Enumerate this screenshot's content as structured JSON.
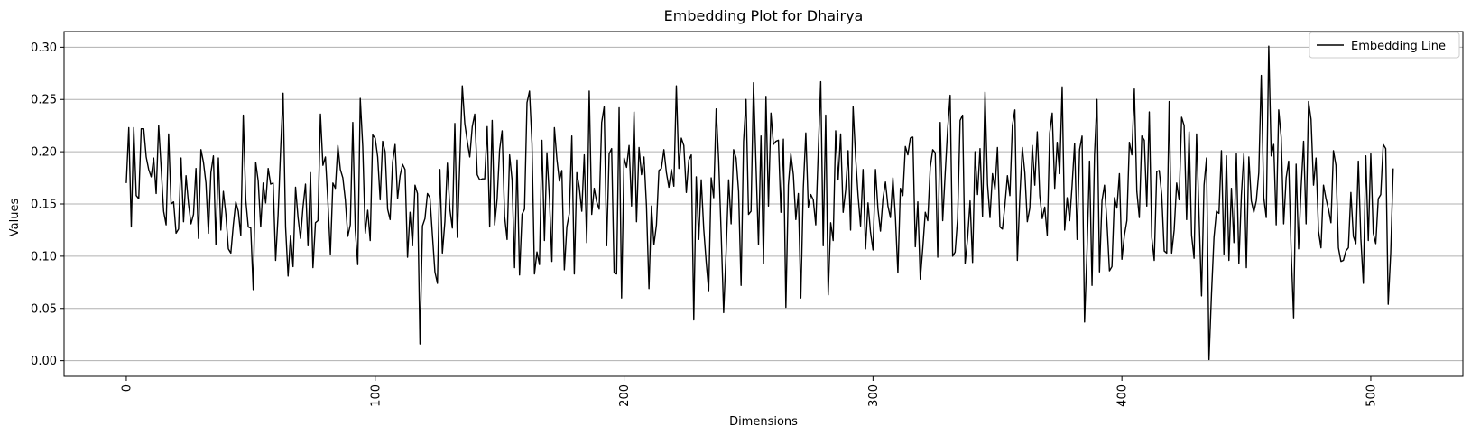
{
  "chart_data": {
    "type": "line",
    "title": "Embedding Plot for Dhairya",
    "xlabel": "Dimensions",
    "ylabel": "Values",
    "xlim": [
      -25,
      537
    ],
    "ylim": [
      -0.015,
      0.315
    ],
    "xticks": [
      0,
      100,
      200,
      300,
      400,
      500
    ],
    "xtick_labels": [
      "0",
      "100",
      "200",
      "300",
      "400",
      "500"
    ],
    "yticks": [
      0.0,
      0.05,
      0.1,
      0.15,
      0.2,
      0.25,
      0.3
    ],
    "ytick_labels": [
      "0.00",
      "0.05",
      "0.10",
      "0.15",
      "0.20",
      "0.25",
      "0.30"
    ],
    "grid": "horizontal",
    "legend_position": "top-right",
    "line_color": "#000000",
    "grid_color": "#b0b0b0",
    "series": [
      {
        "name": "Embedding Line",
        "x_start": 0,
        "x_step": 1,
        "values": [
          0.17,
          0.223,
          0.128,
          0.223,
          0.158,
          0.155,
          0.222,
          0.222,
          0.195,
          0.183,
          0.176,
          0.194,
          0.16,
          0.225,
          0.185,
          0.143,
          0.13,
          0.217,
          0.15,
          0.152,
          0.122,
          0.126,
          0.194,
          0.133,
          0.177,
          0.15,
          0.131,
          0.14,
          0.184,
          0.117,
          0.202,
          0.19,
          0.17,
          0.122,
          0.18,
          0.196,
          0.111,
          0.194,
          0.125,
          0.162,
          0.14,
          0.107,
          0.103,
          0.13,
          0.152,
          0.143,
          0.12,
          0.235,
          0.154,
          0.128,
          0.127,
          0.068,
          0.19,
          0.172,
          0.128,
          0.17,
          0.151,
          0.184,
          0.169,
          0.17,
          0.096,
          0.14,
          0.202,
          0.256,
          0.128,
          0.081,
          0.12,
          0.09,
          0.166,
          0.137,
          0.117,
          0.147,
          0.169,
          0.11,
          0.18,
          0.089,
          0.132,
          0.134,
          0.236,
          0.187,
          0.195,
          0.152,
          0.102,
          0.17,
          0.165,
          0.206,
          0.183,
          0.175,
          0.154,
          0.119,
          0.13,
          0.228,
          0.125,
          0.092,
          0.251,
          0.205,
          0.122,
          0.144,
          0.115,
          0.216,
          0.213,
          0.195,
          0.154,
          0.21,
          0.2,
          0.145,
          0.135,
          0.19,
          0.207,
          0.155,
          0.177,
          0.188,
          0.183,
          0.099,
          0.142,
          0.11,
          0.168,
          0.16,
          0.016,
          0.129,
          0.136,
          0.16,
          0.156,
          0.12,
          0.085,
          0.074,
          0.183,
          0.103,
          0.133,
          0.189,
          0.145,
          0.127,
          0.227,
          0.118,
          0.19,
          0.263,
          0.227,
          0.21,
          0.195,
          0.224,
          0.236,
          0.178,
          0.173,
          0.174,
          0.174,
          0.224,
          0.128,
          0.23,
          0.13,
          0.155,
          0.202,
          0.22,
          0.138,
          0.116,
          0.197,
          0.173,
          0.089,
          0.192,
          0.082,
          0.14,
          0.145,
          0.247,
          0.258,
          0.208,
          0.083,
          0.104,
          0.092,
          0.211,
          0.115,
          0.199,
          0.156,
          0.095,
          0.223,
          0.193,
          0.172,
          0.182,
          0.087,
          0.128,
          0.141,
          0.215,
          0.083,
          0.18,
          0.166,
          0.143,
          0.197,
          0.113,
          0.258,
          0.14,
          0.165,
          0.152,
          0.145,
          0.228,
          0.243,
          0.11,
          0.198,
          0.203,
          0.084,
          0.083,
          0.242,
          0.06,
          0.194,
          0.185,
          0.206,
          0.148,
          0.238,
          0.133,
          0.204,
          0.178,
          0.195,
          0.148,
          0.069,
          0.148,
          0.111,
          0.13,
          0.182,
          0.184,
          0.202,
          0.18,
          0.166,
          0.183,
          0.167,
          0.263,
          0.184,
          0.213,
          0.206,
          0.161,
          0.192,
          0.197,
          0.039,
          0.176,
          0.116,
          0.173,
          0.126,
          0.094,
          0.067,
          0.175,
          0.156,
          0.241,
          0.192,
          0.122,
          0.046,
          0.105,
          0.173,
          0.131,
          0.202,
          0.194,
          0.162,
          0.072,
          0.21,
          0.25,
          0.14,
          0.143,
          0.266,
          0.187,
          0.111,
          0.215,
          0.093,
          0.253,
          0.148,
          0.237,
          0.207,
          0.21,
          0.211,
          0.142,
          0.212,
          0.051,
          0.168,
          0.198,
          0.178,
          0.135,
          0.16,
          0.06,
          0.165,
          0.218,
          0.147,
          0.159,
          0.154,
          0.13,
          0.2,
          0.267,
          0.11,
          0.235,
          0.063,
          0.132,
          0.115,
          0.22,
          0.173,
          0.217,
          0.142,
          0.163,
          0.201,
          0.125,
          0.243,
          0.195,
          0.158,
          0.129,
          0.183,
          0.107,
          0.151,
          0.123,
          0.106,
          0.183,
          0.145,
          0.124,
          0.155,
          0.171,
          0.148,
          0.137,
          0.175,
          0.138,
          0.084,
          0.165,
          0.158,
          0.205,
          0.197,
          0.213,
          0.214,
          0.109,
          0.152,
          0.078,
          0.108,
          0.142,
          0.134,
          0.185,
          0.202,
          0.199,
          0.099,
          0.228,
          0.134,
          0.179,
          0.222,
          0.254,
          0.1,
          0.104,
          0.136,
          0.23,
          0.235,
          0.093,
          0.117,
          0.153,
          0.094,
          0.2,
          0.159,
          0.203,
          0.138,
          0.257,
          0.169,
          0.137,
          0.179,
          0.164,
          0.204,
          0.128,
          0.126,
          0.149,
          0.177,
          0.158,
          0.225,
          0.24,
          0.096,
          0.157,
          0.204,
          0.18,
          0.133,
          0.146,
          0.206,
          0.168,
          0.219,
          0.158,
          0.136,
          0.147,
          0.12,
          0.218,
          0.237,
          0.165,
          0.209,
          0.179,
          0.262,
          0.125,
          0.156,
          0.134,
          0.168,
          0.208,
          0.116,
          0.202,
          0.215,
          0.037,
          0.106,
          0.191,
          0.072,
          0.197,
          0.25,
          0.085,
          0.153,
          0.168,
          0.132,
          0.086,
          0.09,
          0.156,
          0.146,
          0.179,
          0.097,
          0.12,
          0.134,
          0.209,
          0.197,
          0.26,
          0.162,
          0.137,
          0.215,
          0.211,
          0.148,
          0.238,
          0.118,
          0.096,
          0.181,
          0.182,
          0.159,
          0.105,
          0.103,
          0.248,
          0.103,
          0.125,
          0.17,
          0.154,
          0.233,
          0.225,
          0.135,
          0.219,
          0.12,
          0.098,
          0.217,
          0.139,
          0.062,
          0.168,
          0.194,
          0.001,
          0.064,
          0.118,
          0.143,
          0.141,
          0.201,
          0.102,
          0.196,
          0.096,
          0.165,
          0.113,
          0.198,
          0.093,
          0.158,
          0.198,
          0.089,
          0.195,
          0.153,
          0.142,
          0.153,
          0.18,
          0.273,
          0.156,
          0.137,
          0.301,
          0.196,
          0.207,
          0.13,
          0.24,
          0.214,
          0.131,
          0.175,
          0.191,
          0.105,
          0.041,
          0.188,
          0.107,
          0.165,
          0.21,
          0.131,
          0.248,
          0.231,
          0.168,
          0.194,
          0.124,
          0.108,
          0.168,
          0.155,
          0.145,
          0.132,
          0.201,
          0.187,
          0.108,
          0.095,
          0.096,
          0.105,
          0.108,
          0.161,
          0.119,
          0.112,
          0.191,
          0.117,
          0.074,
          0.196,
          0.115,
          0.198,
          0.122,
          0.112,
          0.155,
          0.159,
          0.207,
          0.203,
          0.054,
          0.103,
          0.184
        ]
      }
    ]
  }
}
